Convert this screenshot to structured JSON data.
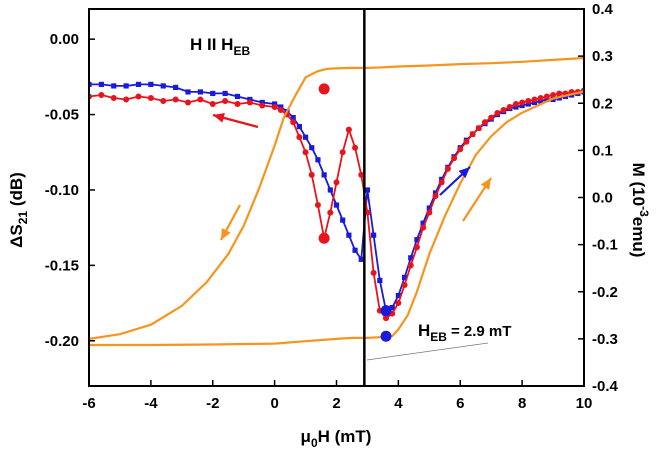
{
  "chart_data": {
    "type": "line",
    "annotation_field": {
      "main": "H II H",
      "sub": "EB"
    },
    "annotation_heb": {
      "main": "H",
      "sub": "EB",
      "value": "= 2.9 mT"
    },
    "xlabel": {
      "pre": "μ",
      "sub": "0",
      "post": "H (mT)"
    },
    "ylabel_left": {
      "pre": "ΔS",
      "sub": "21",
      "post": " (dB)"
    },
    "ylabel_right": {
      "pre": "M (10",
      "sup": "-3",
      "post": "emu)"
    },
    "xlim": [
      -6,
      10
    ],
    "ylim_left": [
      -0.23,
      0.02
    ],
    "ylim_right": [
      -0.4,
      0.4
    ],
    "x_ticks": [
      "-6",
      "-4",
      "-2",
      "0",
      "2",
      "4",
      "6",
      "8",
      "10"
    ],
    "y_left_ticks": [
      "0.00",
      "-0.05",
      "-0.10",
      "-0.15",
      "-0.20"
    ],
    "y_right_ticks": [
      "0.4",
      "0.3",
      "0.2",
      "0.1",
      "0.0",
      "-0.1",
      "-0.2",
      "-0.3",
      "-0.4"
    ],
    "vline_x": 2.9,
    "colors": {
      "blue": "#1a1adb",
      "red": "#e8141c",
      "orange": "#f7941d",
      "axis": "#000000"
    },
    "series": [
      {
        "color": "blue",
        "marker": "square",
        "axis": "left",
        "x": [
          -6,
          -5.6,
          -5.2,
          -4.8,
          -4.4,
          -4,
          -3.6,
          -3.2,
          -2.8,
          -2.4,
          -2,
          -1.6,
          -1.2,
          -0.8,
          -0.4,
          0,
          0.2,
          0.4,
          0.6,
          0.8,
          1,
          1.2,
          1.4,
          1.6,
          1.8,
          2,
          2.2,
          2.4,
          2.6,
          2.8,
          3,
          3.2,
          3.4,
          3.6,
          3.8,
          4,
          4.2,
          4.4,
          4.6,
          4.8,
          5,
          5.2,
          5.4,
          5.6,
          5.8,
          6,
          6.2,
          6.4,
          6.6,
          6.8,
          7,
          7.2,
          7.4,
          7.6,
          7.8,
          8,
          8.2,
          8.4,
          8.6,
          8.8,
          9,
          9.2,
          9.4,
          9.6,
          9.8,
          10
        ],
        "y": [
          -0.03,
          -0.03,
          -0.031,
          -0.031,
          -0.03,
          -0.03,
          -0.031,
          -0.032,
          -0.035,
          -0.035,
          -0.036,
          -0.036,
          -0.038,
          -0.04,
          -0.042,
          -0.043,
          -0.045,
          -0.048,
          -0.052,
          -0.058,
          -0.065,
          -0.072,
          -0.08,
          -0.09,
          -0.1,
          -0.11,
          -0.12,
          -0.13,
          -0.14,
          -0.146,
          -0.1,
          -0.13,
          -0.16,
          -0.18,
          -0.178,
          -0.17,
          -0.158,
          -0.145,
          -0.133,
          -0.122,
          -0.112,
          -0.102,
          -0.093,
          -0.085,
          -0.078,
          -0.072,
          -0.067,
          -0.063,
          -0.059,
          -0.056,
          -0.053,
          -0.05,
          -0.048,
          -0.046,
          -0.045,
          -0.044,
          -0.043,
          -0.042,
          -0.041,
          -0.04,
          -0.04,
          -0.039,
          -0.038,
          -0.037,
          -0.036,
          -0.035
        ]
      },
      {
        "color": "red",
        "marker": "circle",
        "axis": "left",
        "x": [
          -6,
          -5.6,
          -5.2,
          -4.8,
          -4.4,
          -4,
          -3.6,
          -3.2,
          -2.8,
          -2.4,
          -2,
          -1.6,
          -1.2,
          -0.8,
          -0.4,
          0,
          0.2,
          0.4,
          0.6,
          0.8,
          1,
          1.2,
          1.4,
          1.6,
          1.8,
          2,
          2.2,
          2.4,
          2.6,
          2.8,
          3,
          3.2,
          3.4,
          3.6,
          3.8,
          4,
          4.2,
          4.4,
          4.6,
          4.8,
          5,
          5.2,
          5.4,
          5.6,
          5.8,
          6,
          6.2,
          6.4,
          6.6,
          6.8,
          7,
          7.2,
          7.4,
          7.6,
          7.8,
          8,
          8.2,
          8.4,
          8.6,
          8.8,
          9,
          9.2,
          9.4,
          9.6,
          9.8,
          10
        ],
        "y": [
          -0.038,
          -0.037,
          -0.039,
          -0.04,
          -0.038,
          -0.039,
          -0.041,
          -0.04,
          -0.042,
          -0.04,
          -0.043,
          -0.041,
          -0.043,
          -0.042,
          -0.044,
          -0.045,
          -0.047,
          -0.05,
          -0.055,
          -0.065,
          -0.075,
          -0.09,
          -0.11,
          -0.132,
          -0.115,
          -0.095,
          -0.075,
          -0.06,
          -0.072,
          -0.09,
          -0.115,
          -0.155,
          -0.18,
          -0.185,
          -0.182,
          -0.175,
          -0.163,
          -0.15,
          -0.138,
          -0.125,
          -0.115,
          -0.104,
          -0.095,
          -0.086,
          -0.079,
          -0.073,
          -0.068,
          -0.063,
          -0.059,
          -0.055,
          -0.052,
          -0.049,
          -0.047,
          -0.045,
          -0.043,
          -0.042,
          -0.041,
          -0.04,
          -0.039,
          -0.038,
          -0.037,
          -0.036,
          -0.036,
          -0.035,
          -0.035,
          -0.034
        ]
      },
      {
        "color": "orange",
        "marker": "none",
        "axis": "right",
        "x": [
          -6,
          -5,
          -4,
          -3,
          -2.2,
          -1.5,
          -1,
          -0.5,
          0,
          0.3,
          0.7,
          1,
          1.4,
          1.7,
          2,
          2.5,
          3,
          3.5,
          4,
          5,
          6,
          7,
          8,
          9,
          10
        ],
        "y": [
          -0.3,
          -0.29,
          -0.27,
          -0.23,
          -0.18,
          -0.12,
          -0.06,
          0.02,
          0.11,
          0.17,
          0.22,
          0.255,
          0.268,
          0.273,
          0.274,
          0.275,
          0.275,
          0.276,
          0.278,
          0.28,
          0.283,
          0.285,
          0.288,
          0.292,
          0.296
        ]
      },
      {
        "color": "orange",
        "marker": "none",
        "axis": "right",
        "x": [
          -6,
          -4,
          -2,
          0,
          1,
          2,
          2.5,
          3,
          3.5,
          3.8,
          4,
          4.3,
          4.6,
          5,
          5.5,
          6,
          6.5,
          7,
          7.5,
          8,
          9,
          10
        ],
        "y": [
          -0.313,
          -0.313,
          -0.312,
          -0.31,
          -0.305,
          -0.3,
          -0.298,
          -0.298,
          -0.296,
          -0.294,
          -0.28,
          -0.25,
          -0.2,
          -0.12,
          -0.04,
          0.03,
          0.09,
          0.13,
          0.16,
          0.18,
          0.21,
          0.225
        ]
      }
    ],
    "highlight_points": [
      {
        "color": "red",
        "x": 1.6,
        "y": -0.033,
        "axis": "left"
      },
      {
        "color": "red",
        "x": 1.6,
        "y": -0.132,
        "axis": "left"
      },
      {
        "color": "blue",
        "x": 3.6,
        "y": -0.197,
        "axis": "left"
      },
      {
        "color": "blue",
        "x": 3.6,
        "y": -0.18,
        "axis": "left"
      }
    ]
  }
}
